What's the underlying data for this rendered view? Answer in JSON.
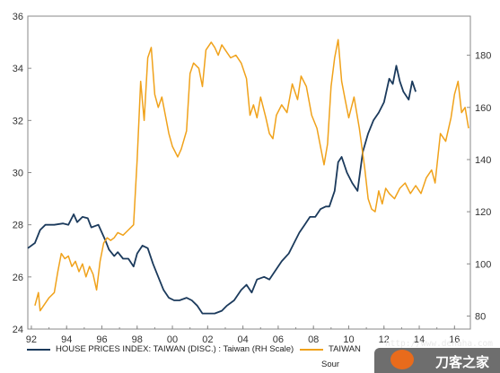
{
  "chart_data": {
    "type": "line",
    "title": "",
    "xlabel": "",
    "ylabel": "",
    "x_tick_labels": [
      "92",
      "94",
      "96",
      "98",
      "00",
      "02",
      "04",
      "06",
      "08",
      "10",
      "12",
      "14",
      "16"
    ],
    "x_tick_years": [
      1992,
      1994,
      1996,
      1998,
      2000,
      2002,
      2004,
      2006,
      2008,
      2010,
      2012,
      2014,
      2016
    ],
    "xlim": [
      1991.8,
      2016.9
    ],
    "left_axis": {
      "ylim": [
        24,
        36
      ],
      "ticks": [
        24,
        26,
        28,
        30,
        32,
        34,
        36
      ]
    },
    "right_axis": {
      "ylim": [
        75,
        195
      ],
      "ticks": [
        80,
        100,
        120,
        140,
        160,
        180
      ]
    },
    "grid": false,
    "legend_position": "bottom",
    "series": [
      {
        "name": "HOUSE PRICES INDEX: TAIWAN (DISC.) : Taiwan (RH Scale)",
        "axis": "right",
        "color": "#1b3a5c",
        "points": [
          [
            1991.8,
            106
          ],
          [
            1992.2,
            108
          ],
          [
            1992.5,
            113
          ],
          [
            1992.8,
            115
          ],
          [
            1993.3,
            115
          ],
          [
            1993.8,
            115.5
          ],
          [
            1994.1,
            115
          ],
          [
            1994.4,
            119
          ],
          [
            1994.6,
            116
          ],
          [
            1994.9,
            118
          ],
          [
            1995.2,
            117.5
          ],
          [
            1995.4,
            114
          ],
          [
            1995.8,
            115
          ],
          [
            1996.2,
            109
          ],
          [
            1996.4,
            105.5
          ],
          [
            1996.7,
            103
          ],
          [
            1996.9,
            104.5
          ],
          [
            1997.2,
            102
          ],
          [
            1997.5,
            102
          ],
          [
            1997.8,
            99
          ],
          [
            1998.0,
            104
          ],
          [
            1998.3,
            107
          ],
          [
            1998.6,
            106
          ],
          [
            1998.9,
            100
          ],
          [
            1999.2,
            95
          ],
          [
            1999.5,
            90
          ],
          [
            1999.8,
            87
          ],
          [
            2000.1,
            86
          ],
          [
            2000.4,
            86
          ],
          [
            2000.8,
            87
          ],
          [
            2001.1,
            86
          ],
          [
            2001.4,
            84
          ],
          [
            2001.7,
            81
          ],
          [
            2002.0,
            81
          ],
          [
            2002.4,
            81
          ],
          [
            2002.8,
            82
          ],
          [
            2003.1,
            84
          ],
          [
            2003.5,
            86
          ],
          [
            2003.9,
            90
          ],
          [
            2004.2,
            92
          ],
          [
            2004.5,
            89
          ],
          [
            2004.8,
            94
          ],
          [
            2005.2,
            95
          ],
          [
            2005.5,
            94
          ],
          [
            2005.9,
            98
          ],
          [
            2006.2,
            101
          ],
          [
            2006.6,
            104
          ],
          [
            2006.9,
            108
          ],
          [
            2007.2,
            112
          ],
          [
            2007.5,
            115
          ],
          [
            2007.8,
            118
          ],
          [
            2008.1,
            118
          ],
          [
            2008.4,
            121
          ],
          [
            2008.7,
            122
          ],
          [
            2008.9,
            122
          ],
          [
            2009.2,
            128
          ],
          [
            2009.4,
            139
          ],
          [
            2009.6,
            141
          ],
          [
            2009.9,
            135
          ],
          [
            2010.2,
            131
          ],
          [
            2010.5,
            128
          ],
          [
            2010.8,
            143
          ],
          [
            2011.1,
            150
          ],
          [
            2011.4,
            155
          ],
          [
            2011.7,
            158
          ],
          [
            2012.0,
            162
          ],
          [
            2012.3,
            171
          ],
          [
            2012.5,
            169
          ],
          [
            2012.7,
            176
          ],
          [
            2012.9,
            170
          ],
          [
            2013.1,
            166
          ],
          [
            2013.4,
            163
          ],
          [
            2013.6,
            170
          ],
          [
            2013.8,
            166
          ]
        ]
      },
      {
        "name": "TAIWAN",
        "axis": "left",
        "color": "#f0a21b",
        "points": [
          [
            1992.2,
            24.9
          ],
          [
            1992.4,
            25.4
          ],
          [
            1992.5,
            24.7
          ],
          [
            1992.8,
            25.0
          ],
          [
            1993.0,
            25.2
          ],
          [
            1993.3,
            25.4
          ],
          [
            1993.5,
            26.2
          ],
          [
            1993.7,
            26.9
          ],
          [
            1993.9,
            26.7
          ],
          [
            1994.1,
            26.8
          ],
          [
            1994.3,
            26.4
          ],
          [
            1994.5,
            26.6
          ],
          [
            1994.7,
            26.2
          ],
          [
            1994.9,
            26.5
          ],
          [
            1995.1,
            26.0
          ],
          [
            1995.3,
            26.4
          ],
          [
            1995.5,
            26.1
          ],
          [
            1995.7,
            25.5
          ],
          [
            1995.9,
            26.6
          ],
          [
            1996.1,
            27.3
          ],
          [
            1996.3,
            27.5
          ],
          [
            1996.5,
            27.4
          ],
          [
            1996.7,
            27.5
          ],
          [
            1996.9,
            27.7
          ],
          [
            1997.2,
            27.6
          ],
          [
            1997.5,
            27.8
          ],
          [
            1997.8,
            28.0
          ],
          [
            1998.0,
            30.5
          ],
          [
            1998.2,
            33.5
          ],
          [
            1998.4,
            32.0
          ],
          [
            1998.6,
            34.4
          ],
          [
            1998.8,
            34.8
          ],
          [
            1999.0,
            33.0
          ],
          [
            1999.2,
            32.5
          ],
          [
            1999.4,
            32.9
          ],
          [
            1999.6,
            32.2
          ],
          [
            1999.8,
            31.5
          ],
          [
            2000.0,
            31.0
          ],
          [
            2000.3,
            30.6
          ],
          [
            2000.5,
            30.9
          ],
          [
            2000.8,
            31.6
          ],
          [
            2001.0,
            33.8
          ],
          [
            2001.2,
            34.2
          ],
          [
            2001.5,
            34.0
          ],
          [
            2001.7,
            33.3
          ],
          [
            2001.9,
            34.7
          ],
          [
            2002.2,
            35.0
          ],
          [
            2002.4,
            34.8
          ],
          [
            2002.6,
            34.5
          ],
          [
            2002.8,
            34.9
          ],
          [
            2003.0,
            34.7
          ],
          [
            2003.3,
            34.4
          ],
          [
            2003.6,
            34.5
          ],
          [
            2003.9,
            34.2
          ],
          [
            2004.2,
            33.6
          ],
          [
            2004.4,
            32.2
          ],
          [
            2004.6,
            32.6
          ],
          [
            2004.8,
            32.1
          ],
          [
            2005.0,
            32.9
          ],
          [
            2005.3,
            32.1
          ],
          [
            2005.5,
            31.5
          ],
          [
            2005.7,
            31.3
          ],
          [
            2005.9,
            32.2
          ],
          [
            2006.2,
            32.6
          ],
          [
            2006.5,
            32.3
          ],
          [
            2006.8,
            33.4
          ],
          [
            2007.1,
            32.8
          ],
          [
            2007.3,
            33.7
          ],
          [
            2007.6,
            33.3
          ],
          [
            2007.9,
            32.2
          ],
          [
            2008.2,
            31.7
          ],
          [
            2008.4,
            31.0
          ],
          [
            2008.6,
            30.3
          ],
          [
            2008.8,
            31.1
          ],
          [
            2009.0,
            33.3
          ],
          [
            2009.2,
            34.4
          ],
          [
            2009.4,
            35.1
          ],
          [
            2009.6,
            33.5
          ],
          [
            2009.8,
            32.8
          ],
          [
            2010.0,
            32.1
          ],
          [
            2010.3,
            32.9
          ],
          [
            2010.6,
            31.7
          ],
          [
            2010.9,
            30.2
          ],
          [
            2011.1,
            29.0
          ],
          [
            2011.3,
            28.6
          ],
          [
            2011.5,
            28.5
          ],
          [
            2011.7,
            29.3
          ],
          [
            2011.9,
            28.8
          ],
          [
            2012.1,
            29.4
          ],
          [
            2012.3,
            29.2
          ],
          [
            2012.6,
            29.0
          ],
          [
            2012.9,
            29.4
          ],
          [
            2013.2,
            29.6
          ],
          [
            2013.5,
            29.2
          ],
          [
            2013.8,
            29.5
          ],
          [
            2014.1,
            29.2
          ],
          [
            2014.4,
            29.8
          ],
          [
            2014.7,
            30.1
          ],
          [
            2014.9,
            29.6
          ],
          [
            2015.2,
            31.5
          ],
          [
            2015.5,
            31.2
          ],
          [
            2015.8,
            32.1
          ],
          [
            2016.0,
            33.0
          ],
          [
            2016.2,
            33.5
          ],
          [
            2016.4,
            32.3
          ],
          [
            2016.6,
            32.5
          ],
          [
            2016.8,
            31.7
          ]
        ]
      }
    ]
  },
  "legend": {
    "items": [
      {
        "label": "HOUSE PRICES INDEX: TAIWAN (DISC.) : Taiwan (RH Scale)",
        "color": "#1b3a5c"
      },
      {
        "label": "TAIWAN",
        "color": "#f0a21b"
      }
    ],
    "source_text": "Sour"
  },
  "watermark": {
    "url": "http://www.dehaha.com",
    "text": "刀客之家",
    "logo_icon": "orange-blade-logo-icon"
  }
}
